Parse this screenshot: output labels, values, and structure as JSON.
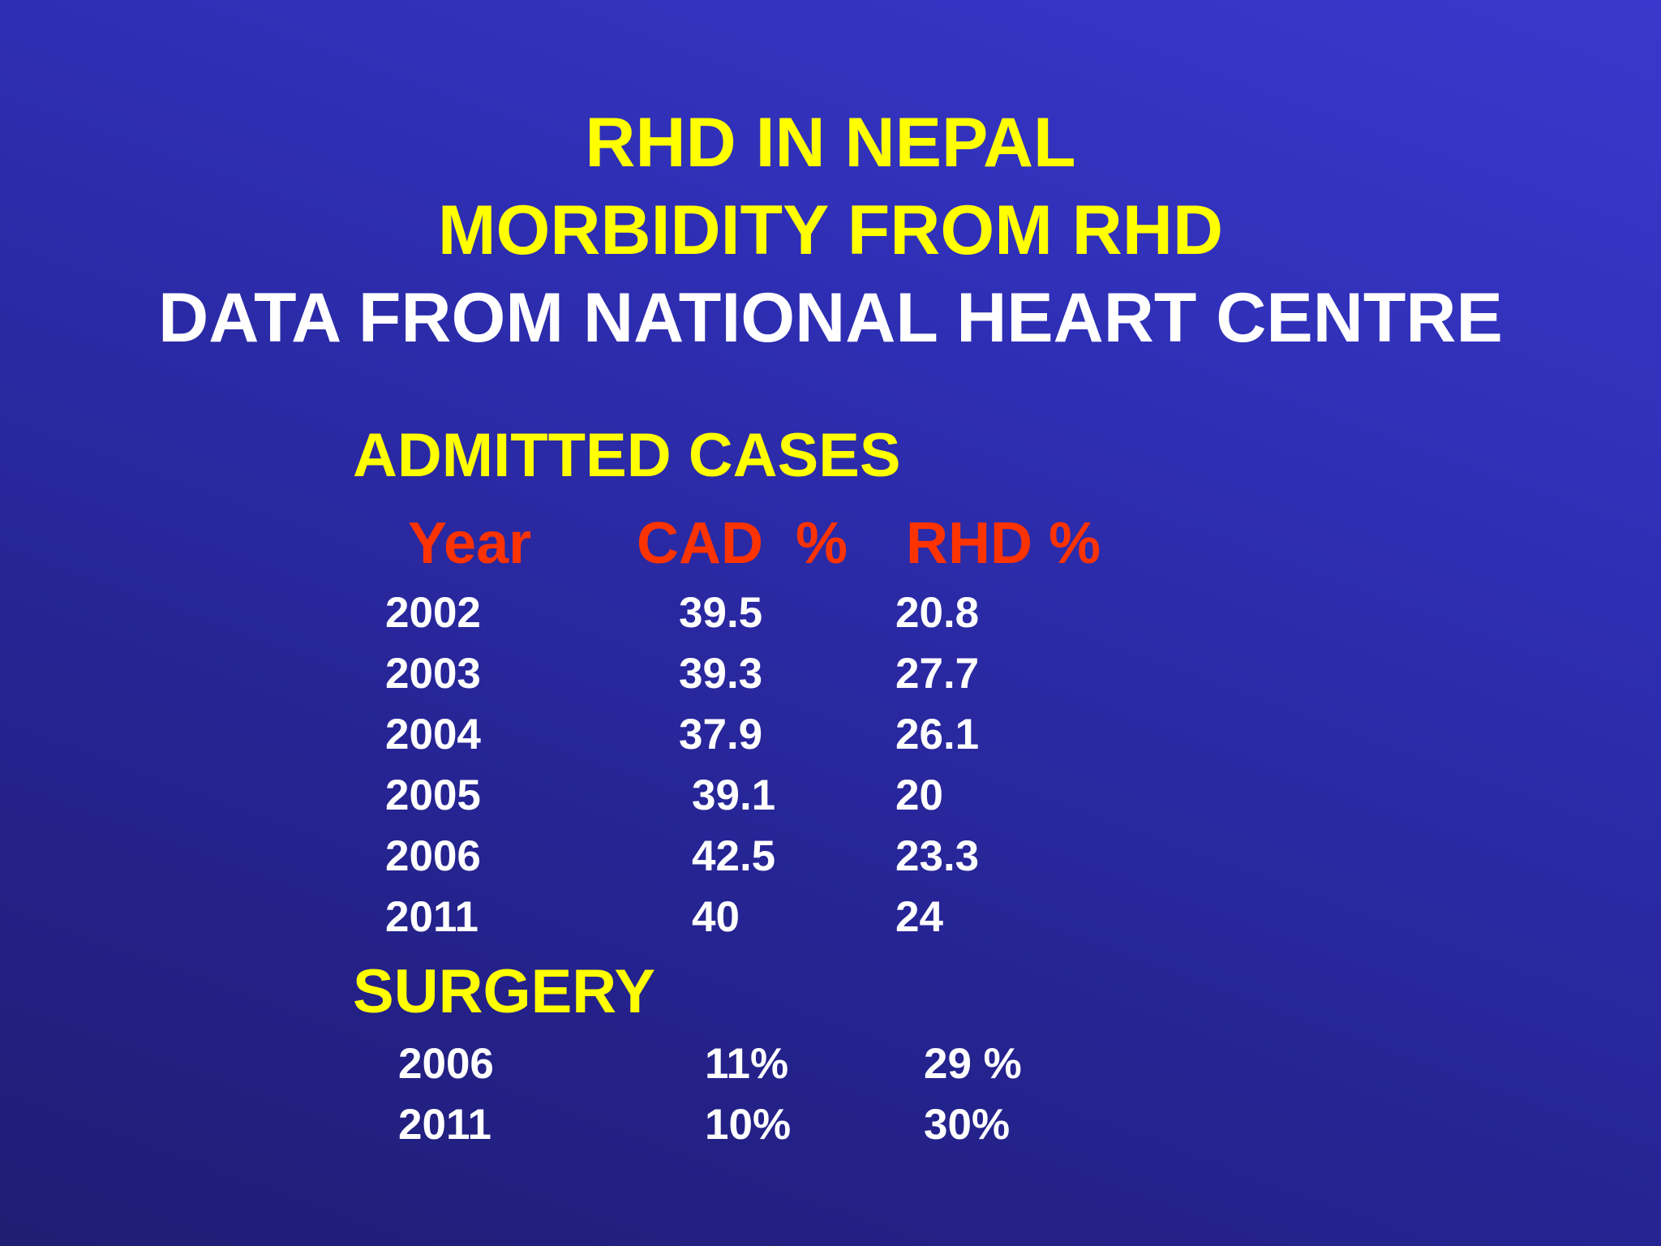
{
  "slide": {
    "title_line1": "RHD IN NEPAL",
    "title_line2": "MORBIDITY FROM RHD",
    "title_line3": "DATA FROM NATIONAL HEART CENTRE"
  },
  "admitted": {
    "heading": "ADMITTED CASES",
    "columns": {
      "year": "Year",
      "cad": "CAD  %",
      "rhd": "RHD %"
    },
    "rows": [
      {
        "year": "2002",
        "cad": "39.5",
        "rhd": "20.8"
      },
      {
        "year": "2003",
        "cad": "39.3",
        "rhd": "27.7"
      },
      {
        "year": "2004",
        "cad": "37.9",
        "rhd": "26.1"
      },
      {
        "year": "2005",
        "cad": "39.1",
        "rhd": "20"
      },
      {
        "year": "2006",
        "cad": "42.5",
        "rhd": "23.3"
      },
      {
        "year": "2011",
        "cad": "40",
        "rhd": "24"
      }
    ]
  },
  "surgery": {
    "heading": "SURGERY",
    "rows": [
      {
        "year": "2006",
        "cad": "11%",
        "rhd": "29 %"
      },
      {
        "year": "2011",
        "cad": "10%",
        "rhd": "30%"
      }
    ]
  },
  "colors": {
    "title_yellow": "#ffff00",
    "title_white": "#ffffff",
    "header_red": "#ff3300",
    "background": "#2f2fb6"
  }
}
